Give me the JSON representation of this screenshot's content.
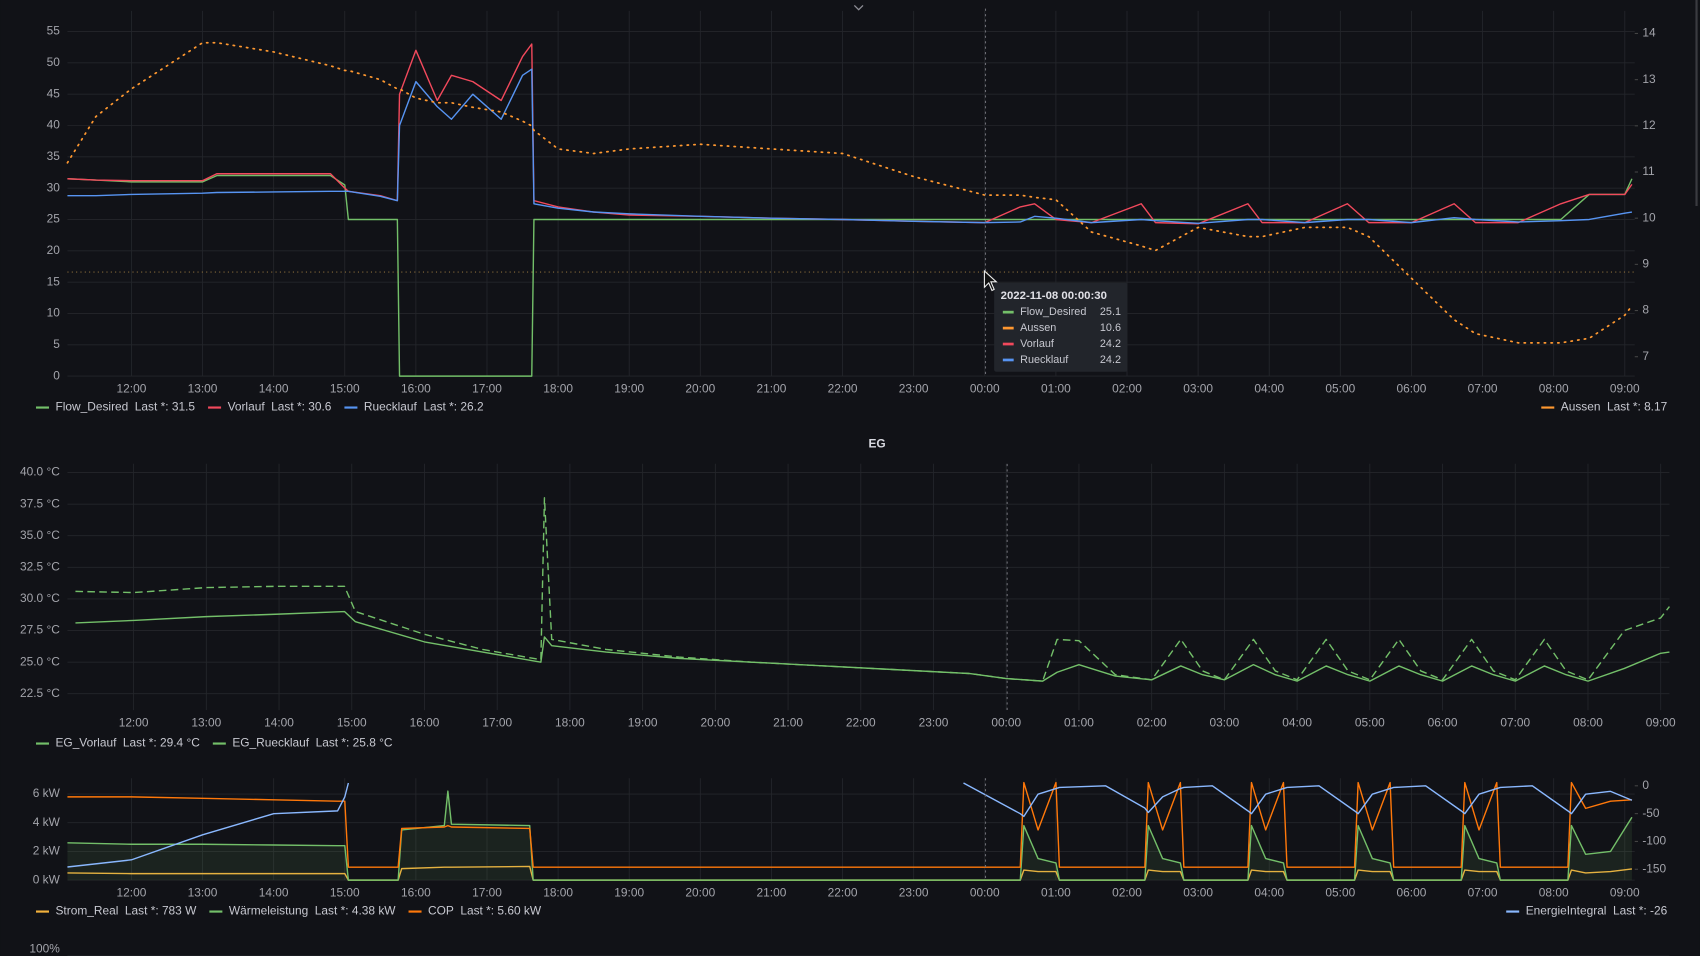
{
  "chart_data": [
    {
      "type": "line",
      "x": [
        11.1,
        11.5,
        12,
        12.5,
        13,
        13.2,
        14,
        14.8,
        15,
        15.05,
        15.5,
        15.74,
        15.77,
        16,
        16.3,
        16.5,
        16.8,
        17.2,
        17.5,
        17.63,
        17.66,
        18,
        18.5,
        19,
        20,
        21,
        22,
        23,
        24,
        24.5,
        24.7,
        25,
        25.5,
        26.2,
        26.4,
        27,
        27.7,
        27.9,
        28.5,
        29.1,
        29.4,
        30,
        30.6,
        30.9,
        31.5,
        32.1,
        32.5,
        33,
        33.1
      ],
      "xlim": [
        11.1,
        33.14
      ],
      "xticks": [
        {
          "value": 12,
          "label": "12:00"
        },
        {
          "value": 13,
          "label": "13:00"
        },
        {
          "value": 14,
          "label": "14:00"
        },
        {
          "value": 15,
          "label": "15:00"
        },
        {
          "value": 16,
          "label": "16:00"
        },
        {
          "value": 17,
          "label": "17:00"
        },
        {
          "value": 18,
          "label": "18:00"
        },
        {
          "value": 19,
          "label": "19:00"
        },
        {
          "value": 20,
          "label": "20:00"
        },
        {
          "value": 21,
          "label": "21:00"
        },
        {
          "value": 22,
          "label": "22:00"
        },
        {
          "value": 23,
          "label": "23:00"
        },
        {
          "value": 24,
          "label": "00:00"
        },
        {
          "value": 25,
          "label": "01:00"
        },
        {
          "value": 26,
          "label": "02:00"
        },
        {
          "value": 27,
          "label": "03:00"
        },
        {
          "value": 28,
          "label": "04:00"
        },
        {
          "value": 29,
          "label": "05:00"
        },
        {
          "value": 30,
          "label": "06:00"
        },
        {
          "value": 31,
          "label": "07:00"
        },
        {
          "value": 32,
          "label": "08:00"
        },
        {
          "value": 33,
          "label": "09:00"
        }
      ],
      "ylim": [
        0,
        58.3
      ],
      "yticks": [
        0,
        5,
        10,
        15,
        20,
        25,
        30,
        35,
        40,
        45,
        50,
        55
      ],
      "y2lim": [
        6.58,
        14.49
      ],
      "y2ticks": [
        7,
        8,
        9,
        10,
        11,
        12,
        13,
        14
      ],
      "grid": true,
      "series": [
        {
          "name": "Flow_Desired",
          "color": "#73bf69",
          "legend_value": "Last *: 31.5",
          "values": [
            31.5,
            31.3,
            31,
            31,
            31,
            32,
            32,
            32,
            30.5,
            25,
            25,
            25,
            0,
            0,
            0,
            0,
            0,
            0,
            0,
            0,
            25,
            25,
            25,
            25,
            25,
            25,
            25,
            25,
            25,
            25,
            25,
            25,
            25,
            25,
            25,
            25,
            25,
            25,
            25,
            25,
            25,
            25,
            25,
            25,
            25,
            25,
            29,
            29,
            31.5
          ]
        },
        {
          "name": "Vorlauf",
          "color": "#f2495c",
          "legend_value": "Last *: 30.6",
          "values": [
            31.5,
            31.3,
            31.2,
            31.2,
            31.2,
            32.3,
            32.3,
            32.3,
            30,
            29.5,
            28.8,
            28,
            45,
            52,
            44,
            48,
            47,
            44,
            51,
            53,
            28,
            27,
            26.2,
            25.7,
            25.5,
            25.2,
            25,
            24.7,
            24.5,
            27,
            27.5,
            25,
            24.5,
            27.5,
            24.5,
            24.3,
            27.5,
            24.5,
            24.5,
            27.5,
            24.5,
            24.5,
            27.5,
            24.5,
            24.5,
            27.5,
            29,
            29,
            30.6
          ]
        },
        {
          "name": "Ruecklauf",
          "color": "#5794f2",
          "legend_value": "Last *: 26.2",
          "values": [
            28.8,
            28.8,
            29,
            29.1,
            29.2,
            29.3,
            29.4,
            29.5,
            29.5,
            29.5,
            28.7,
            28,
            40,
            47,
            43,
            41,
            45,
            41,
            48,
            49,
            27.5,
            26.8,
            26.2,
            25.9,
            25.5,
            25.2,
            25,
            24.7,
            24.5,
            24.6,
            25.5,
            25.2,
            24.5,
            25,
            24.8,
            24.4,
            25,
            25,
            24.5,
            25,
            25,
            24.5,
            25.3,
            25,
            24.6,
            24.8,
            25,
            26,
            26.2
          ]
        },
        {
          "name": "Aussen",
          "color": "#ff9830",
          "axis": "y2",
          "dotted": true,
          "legend_value": "Last *: 8.17",
          "values": [
            11.2,
            12.2,
            12.8,
            13.3,
            13.8,
            13.8,
            13.6,
            13.3,
            13.2,
            13.2,
            13,
            12.8,
            12.8,
            12.6,
            12.5,
            12.5,
            12.4,
            12.3,
            12.1,
            12,
            11.9,
            11.5,
            11.4,
            11.5,
            11.6,
            11.5,
            11.4,
            10.9,
            10.5,
            10.5,
            10.45,
            10.4,
            9.7,
            9.4,
            9.3,
            9.8,
            9.6,
            9.6,
            9.8,
            9.8,
            9.6,
            8.7,
            7.8,
            7.5,
            7.3,
            7.3,
            7.4,
            7.9,
            8.1
          ]
        }
      ],
      "tooltip": {
        "time": "2022-11-08 00:00:30",
        "rows": [
          {
            "name": "Flow_Desired",
            "value": 25.1,
            "color": "#73bf69"
          },
          {
            "name": "Aussen",
            "value": 10.6,
            "color": "#ff9830"
          },
          {
            "name": "Vorlauf",
            "value": 24.2,
            "color": "#f2495c"
          },
          {
            "name": "Ruecklauf",
            "value": 24.2,
            "color": "#5794f2"
          }
        ]
      }
    },
    {
      "type": "line",
      "title": "EG",
      "x": [
        11.2,
        12,
        13,
        14,
        14.9,
        15.05,
        16,
        16.8,
        17.6,
        17.65,
        17.75,
        18.5,
        19.5,
        20.5,
        21.5,
        22.5,
        23.5,
        24,
        24.5,
        24.7,
        25,
        25.5,
        26,
        26.4,
        26.7,
        27,
        27.4,
        27.7,
        28,
        28.4,
        28.7,
        29,
        29.4,
        29.7,
        30,
        30.4,
        30.7,
        31,
        31.4,
        31.7,
        32,
        32.5,
        33,
        33.12
      ],
      "xlim": [
        11.09,
        33.12
      ],
      "xticks": [
        {
          "value": 12,
          "label": "12:00"
        },
        {
          "value": 13,
          "label": "13:00"
        },
        {
          "value": 14,
          "label": "14:00"
        },
        {
          "value": 15,
          "label": "15:00"
        },
        {
          "value": 16,
          "label": "16:00"
        },
        {
          "value": 17,
          "label": "17:00"
        },
        {
          "value": 18,
          "label": "18:00"
        },
        {
          "value": 19,
          "label": "19:00"
        },
        {
          "value": 20,
          "label": "20:00"
        },
        {
          "value": 21,
          "label": "21:00"
        },
        {
          "value": 22,
          "label": "22:00"
        },
        {
          "value": 23,
          "label": "23:00"
        },
        {
          "value": 24,
          "label": "00:00"
        },
        {
          "value": 25,
          "label": "01:00"
        },
        {
          "value": 26,
          "label": "02:00"
        },
        {
          "value": 27,
          "label": "03:00"
        },
        {
          "value": 28,
          "label": "04:00"
        },
        {
          "value": 29,
          "label": "05:00"
        },
        {
          "value": 30,
          "label": "06:00"
        },
        {
          "value": 31,
          "label": "07:00"
        },
        {
          "value": 32,
          "label": "08:00"
        },
        {
          "value": 33,
          "label": "09:00"
        }
      ],
      "ylim": [
        21.2,
        40.7
      ],
      "yticks": [
        {
          "value": 22.5,
          "label": "22.5 °C"
        },
        {
          "value": 25,
          "label": "25.0 °C"
        },
        {
          "value": 27.5,
          "label": "27.5 °C"
        },
        {
          "value": 30,
          "label": "30.0 °C"
        },
        {
          "value": 32.5,
          "label": "32.5 °C"
        },
        {
          "value": 35,
          "label": "35.0 °C"
        },
        {
          "value": 37.5,
          "label": "37.5 °C"
        },
        {
          "value": 40,
          "label": "40.0 °C"
        }
      ],
      "grid": true,
      "series": [
        {
          "name": "EG_Vorlauf",
          "color": "#73bf69",
          "dashed": true,
          "legend_value": "Last *: 29.4 °C",
          "values": [
            30.6,
            30.5,
            30.9,
            31,
            31,
            29,
            27.2,
            26,
            25.2,
            38,
            26.8,
            26,
            25.4,
            25,
            24.7,
            24.4,
            24.1,
            23.7,
            23.5,
            26.8,
            26.7,
            24,
            23.6,
            26.8,
            24.3,
            23.6,
            26.8,
            24.3,
            23.6,
            26.8,
            24.3,
            23.6,
            26.8,
            24.3,
            23.6,
            26.8,
            24.3,
            23.6,
            26.8,
            24.3,
            23.6,
            27.5,
            28.5,
            29.4
          ]
        },
        {
          "name": "EG_Ruecklauf",
          "color": "#73bf69",
          "legend_value": "Last *: 25.8 °C",
          "values": [
            28.1,
            28.3,
            28.6,
            28.8,
            29,
            28.2,
            26.6,
            25.8,
            25,
            27,
            26.3,
            25.8,
            25.3,
            25,
            24.7,
            24.4,
            24.1,
            23.7,
            23.5,
            24.2,
            24.8,
            23.9,
            23.6,
            24.7,
            24,
            23.6,
            24.8,
            24,
            23.5,
            24.7,
            24,
            23.5,
            24.7,
            24,
            23.5,
            24.7,
            24,
            23.5,
            24.7,
            24,
            23.5,
            24.5,
            25.7,
            25.8
          ]
        }
      ]
    },
    {
      "type": "line",
      "x": [
        11.1,
        12,
        13,
        14,
        14.9,
        15.0,
        15.05,
        15.75,
        15.8,
        16.4,
        16.45,
        16.5,
        17.6,
        17.65,
        23.7,
        24.5,
        24.55,
        24.75,
        25.0,
        25.05,
        25.7,
        26.25,
        26.3,
        26.5,
        26.75,
        26.8,
        27.2,
        27.7,
        27.75,
        27.95,
        28.2,
        28.25,
        28.7,
        29.2,
        29.25,
        29.45,
        29.7,
        29.75,
        30.2,
        30.7,
        30.75,
        30.95,
        31.2,
        31.25,
        31.7,
        32.2,
        32.25,
        32.45,
        32.8,
        33.1
      ],
      "xlim": [
        11.1,
        33.14
      ],
      "xticks": [
        {
          "value": 12,
          "label": "12:00"
        },
        {
          "value": 13,
          "label": "13:00"
        },
        {
          "value": 14,
          "label": "14:00"
        },
        {
          "value": 15,
          "label": "15:00"
        },
        {
          "value": 16,
          "label": "16:00"
        },
        {
          "value": 17,
          "label": "17:00"
        },
        {
          "value": 18,
          "label": "18:00"
        },
        {
          "value": 19,
          "label": "19:00"
        },
        {
          "value": 20,
          "label": "20:00"
        },
        {
          "value": 21,
          "label": "21:00"
        },
        {
          "value": 22,
          "label": "22:00"
        },
        {
          "value": 23,
          "label": "23:00"
        },
        {
          "value": 24,
          "label": "00:00"
        },
        {
          "value": 25,
          "label": "01:00"
        },
        {
          "value": 26,
          "label": "02:00"
        },
        {
          "value": 27,
          "label": "03:00"
        },
        {
          "value": 28,
          "label": "04:00"
        },
        {
          "value": 29,
          "label": "05:00"
        },
        {
          "value": 30,
          "label": "06:00"
        },
        {
          "value": 31,
          "label": "07:00"
        },
        {
          "value": 32,
          "label": "08:00"
        },
        {
          "value": 33,
          "label": "09:00"
        }
      ],
      "ylim": [
        0,
        7.1
      ],
      "yticks": [
        {
          "value": 0,
          "label": "0 kW"
        },
        {
          "value": 2,
          "label": "2 kW"
        },
        {
          "value": 4,
          "label": "4 kW"
        },
        {
          "value": 6,
          "label": "6 kW"
        }
      ],
      "y2lim": [
        -169.5,
        13.6
      ],
      "y2ticks": [
        0,
        -50,
        -100,
        -150
      ],
      "grid": true,
      "series": [
        {
          "name": "Strom_Real",
          "color": "#f2b13c",
          "legend_value": "Last *: 783 W",
          "values": [
            0.5,
            0.45,
            0.45,
            0.45,
            0.45,
            0.45,
            0,
            0,
            0.8,
            0.9,
            0.9,
            0.9,
            0.95,
            0,
            0,
            0,
            0.7,
            0.6,
            0.6,
            0,
            0,
            0,
            0.7,
            0.6,
            0.6,
            0,
            0,
            0,
            0.7,
            0.6,
            0.6,
            0,
            0,
            0,
            0.7,
            0.6,
            0.6,
            0,
            0,
            0,
            0.7,
            0.6,
            0.6,
            0,
            0,
            0,
            0.7,
            0.5,
            0.6,
            0.78
          ]
        },
        {
          "name": "Wärmeleistung",
          "color": "#73bf69",
          "fill": true,
          "legend_value": "Last *: 4.38 kW",
          "values": [
            2.6,
            2.5,
            2.5,
            2.45,
            2.4,
            2.4,
            0,
            0,
            3.5,
            3.8,
            6.2,
            3.9,
            3.8,
            0,
            0,
            0,
            3.8,
            1.5,
            1.2,
            0,
            0,
            0,
            3.8,
            1.5,
            1.2,
            0,
            0,
            0,
            3.8,
            1.5,
            1.2,
            0,
            0,
            0,
            3.8,
            1.5,
            1.2,
            0,
            0,
            0,
            3.8,
            1.5,
            1.2,
            0,
            0,
            0,
            3.8,
            1.8,
            2,
            4.38
          ]
        },
        {
          "name": "COP",
          "color": "#ff780a",
          "legend_value": "Last *: 5.60 kW",
          "values": [
            5.8,
            5.8,
            5.7,
            5.6,
            5.5,
            5.5,
            0.9,
            0.9,
            3.6,
            3.7,
            3.8,
            3.7,
            3.6,
            0.9,
            0.9,
            0.9,
            6.8,
            3.5,
            6.8,
            0.9,
            0.9,
            0.9,
            6.8,
            3.5,
            6.8,
            0.9,
            0.9,
            0.9,
            6.8,
            3.5,
            6.8,
            0.9,
            0.9,
            0.9,
            6.8,
            3.5,
            6.8,
            0.9,
            0.9,
            0.9,
            6.8,
            3.5,
            6.8,
            0.9,
            0.9,
            0.9,
            6.8,
            5,
            5.5,
            5.6
          ]
        },
        {
          "name": "EnergieIntegral",
          "color": "#8ab8ff",
          "axis": "y2",
          "legend_value": "Last *: -26",
          "values": [
            -146,
            -133,
            -88,
            -50,
            -45,
            -20,
            5,
            null,
            null,
            null,
            null,
            null,
            null,
            null,
            5,
            -50,
            -55,
            -15,
            -5,
            -3,
            0,
            -40,
            -48,
            -20,
            -5,
            -3,
            0,
            -45,
            -50,
            -15,
            -5,
            -3,
            0,
            -45,
            -50,
            -15,
            -5,
            -3,
            0,
            -45,
            -50,
            -15,
            -5,
            -3,
            0,
            -45,
            -50,
            -15,
            -10,
            -26
          ]
        }
      ]
    }
  ],
  "next_panel": {
    "top_tick": "100%"
  }
}
